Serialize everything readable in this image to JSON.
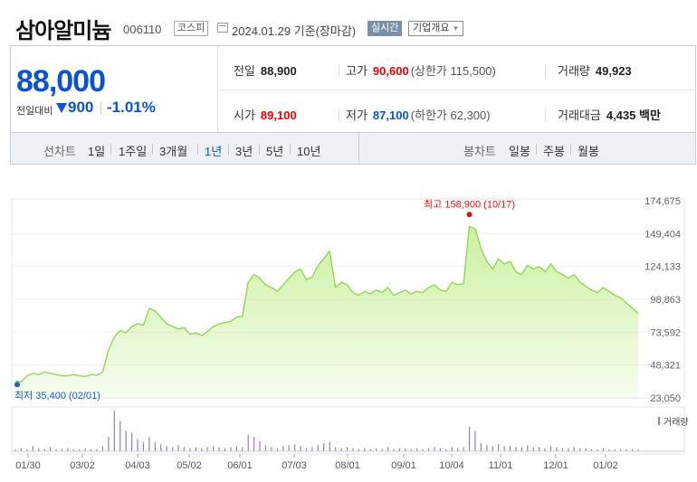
{
  "header": {
    "stock_name": "삼아알미늄",
    "stock_code": "006110",
    "market": "코스피",
    "date_text": "2024.01.29 기준(장마감)",
    "realtime_label": "실시간",
    "company_info_label": "기업개요"
  },
  "summary": {
    "price": "88,000",
    "change_label": "전일대비",
    "change_amount": "900",
    "change_percent": "-1.01%",
    "prev_close_label": "전일",
    "prev_close": "88,900",
    "high_label": "고가",
    "high": "90,600",
    "upper_limit": "(상한가 115,500)",
    "volume_label": "거래량",
    "volume": "49,923",
    "open_label": "시가",
    "open": "89,100",
    "low_label": "저가",
    "low": "87,100",
    "lower_limit": "(하한가 62,300)",
    "amount_label": "거래대금",
    "amount": "4,435",
    "amount_unit": "백만"
  },
  "period_bar": {
    "line_label": "선차트",
    "periods": [
      "1일",
      "1주일",
      "3개월",
      "1년",
      "3년",
      "5년",
      "10년"
    ],
    "active_period": "1년",
    "candle_label": "봉차트",
    "candles": [
      "일봉",
      "주봉",
      "월봉"
    ]
  },
  "chart_data": {
    "type": "area",
    "ylim": [
      23050,
      174675
    ],
    "y_ticks": [
      "174,675",
      "149,404",
      "124,133",
      "98,863",
      "73,592",
      "48,321",
      "23,050"
    ],
    "x_tick_labels": [
      "01/30",
      "03/02",
      "04/03",
      "05/02",
      "06/01",
      "07/03",
      "08/01",
      "09/01",
      "10/04",
      "11/01",
      "12/01",
      "01/02"
    ],
    "high_annotation": "최고 158,900 (10/17)",
    "low_annotation": "최저 35,400 (02/01)",
    "volume_label": "거래량",
    "line_color": "#8bd64a",
    "fill_color": "#c9f09c",
    "high_color": "#e01010",
    "low_color": "#1a5fc9",
    "prices": [
      36000,
      35400,
      40000,
      42000,
      41000,
      43000,
      42000,
      41000,
      40000,
      40000,
      41000,
      40000,
      39500,
      41000,
      40500,
      43000,
      60000,
      70000,
      75000,
      73000,
      78000,
      80000,
      79000,
      92000,
      90000,
      85000,
      80000,
      78000,
      76000,
      77000,
      72000,
      73000,
      71000,
      74000,
      78000,
      80000,
      81000,
      82000,
      85000,
      86000,
      112000,
      118000,
      115000,
      110000,
      108000,
      105000,
      110000,
      115000,
      120000,
      122000,
      114000,
      116000,
      125000,
      130000,
      136000,
      108000,
      112000,
      110000,
      104000,
      102000,
      105000,
      103000,
      106000,
      104000,
      108000,
      102000,
      104000,
      106000,
      103000,
      105000,
      104000,
      108000,
      110000,
      106000,
      105000,
      112000,
      110000,
      111000,
      155000,
      153000,
      138000,
      128000,
      122000,
      130000,
      126000,
      128000,
      120000,
      118000,
      125000,
      122000,
      124000,
      120000,
      126000,
      120000,
      118000,
      115000,
      118000,
      112000,
      109000,
      106000,
      104000,
      108000,
      105000,
      102000,
      100000,
      96000,
      92000,
      88000
    ],
    "volumes": [
      2,
      3,
      2,
      5,
      3,
      2,
      4,
      2,
      2,
      3,
      2,
      2,
      3,
      2,
      2,
      5,
      14,
      40,
      30,
      20,
      18,
      12,
      9,
      14,
      9,
      7,
      5,
      4,
      6,
      4,
      3,
      4,
      3,
      4,
      5,
      4,
      3,
      4,
      5,
      4,
      16,
      14,
      10,
      6,
      4,
      3,
      5,
      6,
      7,
      5,
      3,
      4,
      6,
      8,
      9,
      4,
      3,
      4,
      3,
      2,
      3,
      2,
      3,
      2,
      4,
      2,
      3,
      3,
      2,
      3,
      2,
      3,
      4,
      3,
      2,
      4,
      3,
      4,
      24,
      20,
      8,
      6,
      5,
      7,
      5,
      5,
      4,
      4,
      6,
      4,
      4,
      3,
      5,
      4,
      3,
      3,
      4,
      3,
      3,
      2,
      2,
      3,
      2,
      2,
      2,
      2,
      2,
      2
    ]
  }
}
